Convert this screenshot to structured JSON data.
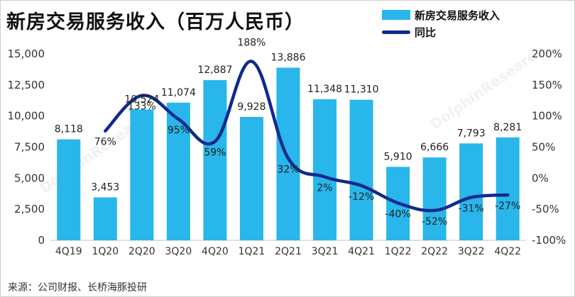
{
  "title": "新房交易服务收入（百万人民币）",
  "source": "来源：公司财报、长桥海豚投研",
  "legend": {
    "bar_label": "新房交易服务收入",
    "line_label": "同比"
  },
  "colors": {
    "bar": "#29b6ea",
    "line": "#0f2a8c"
  },
  "chart_data": {
    "type": "bar",
    "categories": [
      "4Q19",
      "1Q20",
      "2Q20",
      "3Q20",
      "4Q20",
      "1Q21",
      "2Q21",
      "3Q21",
      "4Q21",
      "1Q22",
      "2Q22",
      "3Q22",
      "4Q22"
    ],
    "series": [
      {
        "name": "新房交易服务收入",
        "type": "bar",
        "axis": "left",
        "values": [
          8118,
          3453,
          10524,
          11074,
          12887,
          9928,
          13886,
          11348,
          11310,
          5910,
          6666,
          7793,
          8281
        ],
        "labels": [
          "8,118",
          "3,453",
          "10,524",
          "11,074",
          "12,887",
          "9,928",
          "13,886",
          "11,348",
          "11,310",
          "5,910",
          "6,666",
          "7,793",
          "8,281"
        ]
      },
      {
        "name": "同比",
        "type": "line",
        "axis": "right",
        "values": [
          null,
          76,
          133,
          95,
          59,
          188,
          32,
          2,
          -12,
          -40,
          -52,
          -31,
          -27
        ],
        "labels": [
          "",
          "76%",
          "133%",
          "95%",
          "59%",
          "188%",
          "32%",
          "2%",
          "-12%",
          "-40%",
          "-52%",
          "-31%",
          "-27%"
        ]
      }
    ],
    "y_left": {
      "min": 0,
      "max": 15000,
      "ticks": [
        "0",
        "2,500",
        "5,000",
        "7,500",
        "10,000",
        "12,500",
        "15,000"
      ]
    },
    "y_right": {
      "min": -100,
      "max": 200,
      "ticks": [
        "-100%",
        "-50%",
        "0%",
        "50%",
        "100%",
        "150%",
        "200%"
      ]
    },
    "grid": false,
    "legend_position": "top-right"
  }
}
